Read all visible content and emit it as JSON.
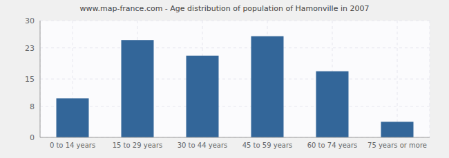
{
  "chart_data": {
    "type": "bar",
    "title": "www.map-france.com - Age distribution of population of Hamonville in 2007",
    "categories": [
      "0 to 14 years",
      "15 to 29 years",
      "30 to 44 years",
      "45 to 59 years",
      "60 to 74 years",
      "75 years or more"
    ],
    "values": [
      10,
      25,
      21,
      26,
      17,
      4
    ],
    "color": "#336699",
    "ylim": [
      0,
      30
    ],
    "yticks": [
      0,
      8,
      15,
      23,
      30
    ],
    "grid": true
  }
}
